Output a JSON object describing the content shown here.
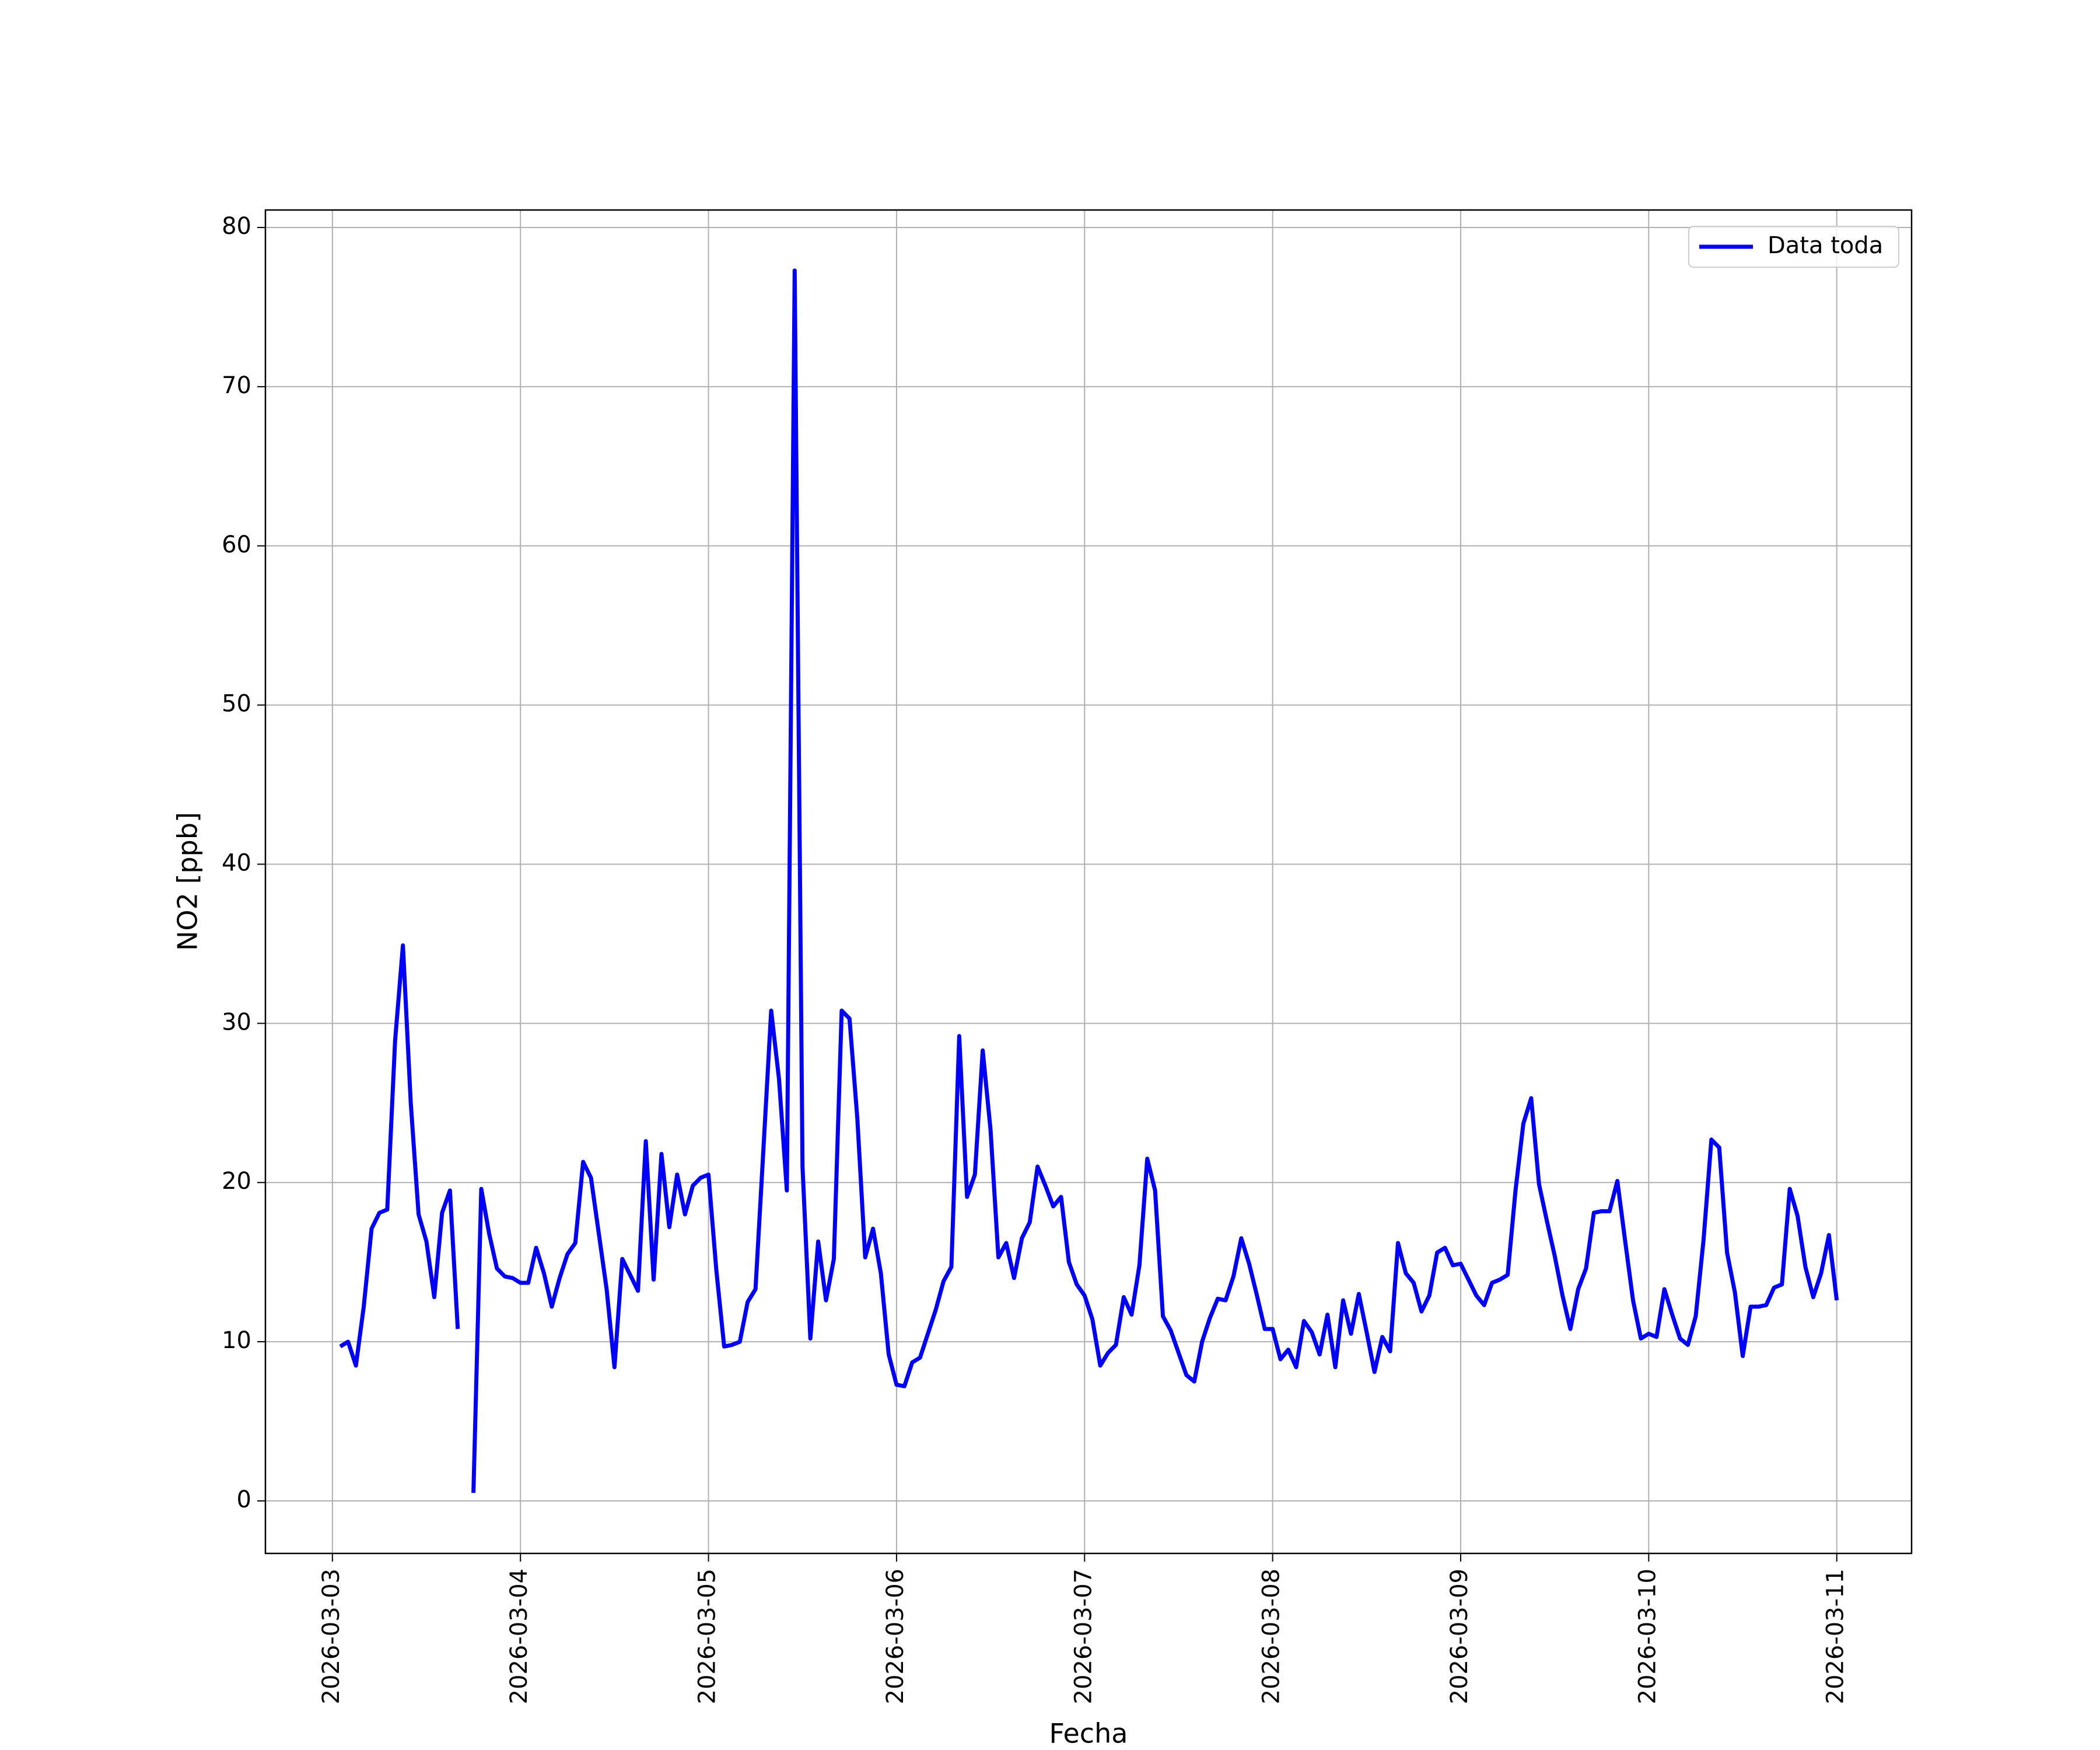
{
  "chart_data": {
    "type": "line",
    "xlabel": "Fecha",
    "ylabel": "NO2 [ppb]",
    "x": [
      "2026-03-03 01:00",
      "2026-03-03 02:00",
      "2026-03-03 03:00",
      "2026-03-03 04:00",
      "2026-03-03 05:00",
      "2026-03-03 06:00",
      "2026-03-03 07:00",
      "2026-03-03 08:00",
      "2026-03-03 09:00",
      "2026-03-03 10:00",
      "2026-03-03 11:00",
      "2026-03-03 12:00",
      "2026-03-03 13:00",
      "2026-03-03 14:00",
      "2026-03-03 15:00",
      "2026-03-03 16:00",
      "2026-03-03 17:00",
      "2026-03-03 18:00",
      "2026-03-03 19:00",
      "2026-03-03 20:00",
      "2026-03-03 21:00",
      "2026-03-03 22:00",
      "2026-03-03 23:00",
      "2026-03-04 00:00",
      "2026-03-04 01:00",
      "2026-03-04 02:00",
      "2026-03-04 03:00",
      "2026-03-04 04:00",
      "2026-03-04 05:00",
      "2026-03-04 06:00",
      "2026-03-04 07:00",
      "2026-03-04 08:00",
      "2026-03-04 09:00",
      "2026-03-04 10:00",
      "2026-03-04 11:00",
      "2026-03-04 12:00",
      "2026-03-04 13:00",
      "2026-03-04 14:00",
      "2026-03-04 15:00",
      "2026-03-04 16:00",
      "2026-03-04 17:00",
      "2026-03-04 18:00",
      "2026-03-04 19:00",
      "2026-03-04 20:00",
      "2026-03-04 21:00",
      "2026-03-04 22:00",
      "2026-03-04 23:00",
      "2026-03-05 00:00",
      "2026-03-05 01:00",
      "2026-03-05 02:00",
      "2026-03-05 03:00",
      "2026-03-05 04:00",
      "2026-03-05 05:00",
      "2026-03-05 06:00",
      "2026-03-05 07:00",
      "2026-03-05 08:00",
      "2026-03-05 09:00",
      "2026-03-05 10:00",
      "2026-03-05 11:00",
      "2026-03-05 12:00",
      "2026-03-05 13:00",
      "2026-03-05 14:00",
      "2026-03-05 15:00",
      "2026-03-05 16:00",
      "2026-03-05 17:00",
      "2026-03-05 18:00",
      "2026-03-05 19:00",
      "2026-03-05 20:00",
      "2026-03-05 21:00",
      "2026-03-05 22:00",
      "2026-03-05 23:00",
      "2026-03-06 00:00",
      "2026-03-06 01:00",
      "2026-03-06 02:00",
      "2026-03-06 03:00",
      "2026-03-06 04:00",
      "2026-03-06 05:00",
      "2026-03-06 06:00",
      "2026-03-06 07:00",
      "2026-03-06 08:00",
      "2026-03-06 09:00",
      "2026-03-06 10:00",
      "2026-03-06 11:00",
      "2026-03-06 12:00",
      "2026-03-06 13:00",
      "2026-03-06 14:00",
      "2026-03-06 15:00",
      "2026-03-06 16:00",
      "2026-03-06 17:00",
      "2026-03-06 18:00",
      "2026-03-06 19:00",
      "2026-03-06 20:00",
      "2026-03-06 21:00",
      "2026-03-06 22:00",
      "2026-03-06 23:00",
      "2026-03-07 00:00",
      "2026-03-07 01:00",
      "2026-03-07 02:00",
      "2026-03-07 03:00",
      "2026-03-07 04:00",
      "2026-03-07 05:00",
      "2026-03-07 06:00",
      "2026-03-07 07:00",
      "2026-03-07 08:00",
      "2026-03-07 09:00",
      "2026-03-07 10:00",
      "2026-03-07 11:00",
      "2026-03-07 12:00",
      "2026-03-07 13:00",
      "2026-03-07 14:00",
      "2026-03-07 15:00",
      "2026-03-07 16:00",
      "2026-03-07 17:00",
      "2026-03-07 18:00",
      "2026-03-07 19:00",
      "2026-03-07 20:00",
      "2026-03-07 21:00",
      "2026-03-07 22:00",
      "2026-03-07 23:00",
      "2026-03-08 00:00",
      "2026-03-08 01:00",
      "2026-03-08 02:00",
      "2026-03-08 03:00",
      "2026-03-08 04:00",
      "2026-03-08 05:00",
      "2026-03-08 06:00",
      "2026-03-08 07:00",
      "2026-03-08 08:00",
      "2026-03-08 09:00",
      "2026-03-08 10:00",
      "2026-03-08 11:00",
      "2026-03-08 12:00",
      "2026-03-08 13:00",
      "2026-03-08 14:00",
      "2026-03-08 15:00",
      "2026-03-08 16:00",
      "2026-03-08 17:00",
      "2026-03-08 18:00",
      "2026-03-08 19:00",
      "2026-03-08 20:00",
      "2026-03-08 21:00",
      "2026-03-08 22:00",
      "2026-03-08 23:00",
      "2026-03-09 00:00",
      "2026-03-09 01:00",
      "2026-03-09 02:00",
      "2026-03-09 03:00",
      "2026-03-09 04:00",
      "2026-03-09 05:00",
      "2026-03-09 06:00",
      "2026-03-09 07:00",
      "2026-03-09 08:00",
      "2026-03-09 09:00",
      "2026-03-09 10:00",
      "2026-03-09 11:00",
      "2026-03-09 12:00",
      "2026-03-09 13:00",
      "2026-03-09 14:00",
      "2026-03-09 15:00",
      "2026-03-09 16:00",
      "2026-03-09 17:00",
      "2026-03-09 18:00",
      "2026-03-09 19:00",
      "2026-03-09 20:00",
      "2026-03-09 21:00",
      "2026-03-09 22:00",
      "2026-03-09 23:00",
      "2026-03-10 00:00",
      "2026-03-10 01:00",
      "2026-03-10 02:00",
      "2026-03-10 03:00",
      "2026-03-10 04:00",
      "2026-03-10 05:00",
      "2026-03-10 06:00",
      "2026-03-10 07:00",
      "2026-03-10 08:00",
      "2026-03-10 09:00",
      "2026-03-10 10:00",
      "2026-03-10 11:00",
      "2026-03-10 12:00",
      "2026-03-10 13:00",
      "2026-03-10 14:00",
      "2026-03-10 15:00",
      "2026-03-10 16:00",
      "2026-03-10 17:00",
      "2026-03-10 18:00",
      "2026-03-10 19:00",
      "2026-03-10 20:00",
      "2026-03-10 21:00",
      "2026-03-10 22:00",
      "2026-03-10 23:00",
      "2026-03-11 00:00"
    ],
    "series": [
      {
        "name": "Data toda",
        "color": "#0000ff",
        "values": [
          9.7,
          10.0,
          8.5,
          12.2,
          17.1,
          18.1,
          18.3,
          28.9,
          34.9,
          25.0,
          18.0,
          16.3,
          12.8,
          18.1,
          19.5,
          10.8,
          null,
          0.5,
          19.6,
          16.8,
          14.6,
          14.1,
          14.0,
          13.7,
          13.7,
          15.9,
          14.3,
          12.2,
          14.0,
          15.5,
          16.2,
          21.3,
          20.3,
          16.8,
          13.3,
          8.4,
          15.2,
          14.2,
          13.2,
          22.6,
          13.9,
          21.8,
          17.2,
          20.5,
          18.0,
          19.8,
          20.3,
          20.5,
          14.5,
          9.7,
          9.8,
          10.0,
          12.5,
          13.3,
          22.0,
          30.8,
          26.5,
          19.5,
          77.3,
          21.0,
          10.2,
          16.3,
          12.6,
          15.2,
          30.8,
          30.3,
          24.0,
          15.3,
          17.1,
          14.3,
          9.2,
          7.3,
          7.2,
          8.7,
          9.0,
          10.5,
          12.0,
          13.8,
          14.7,
          29.2,
          19.1,
          20.5,
          28.3,
          23.3,
          15.3,
          16.2,
          14.0,
          16.5,
          17.5,
          21.0,
          19.8,
          18.5,
          19.1,
          15.0,
          13.6,
          12.9,
          11.4,
          8.5,
          9.3,
          9.8,
          12.8,
          11.7,
          14.8,
          21.5,
          19.5,
          11.6,
          10.7,
          9.3,
          7.9,
          7.5,
          10.0,
          11.5,
          12.7,
          12.6,
          14.1,
          16.5,
          14.9,
          12.9,
          10.8,
          10.8,
          8.9,
          9.5,
          8.4,
          11.3,
          10.6,
          9.2,
          11.7,
          8.4,
          12.6,
          10.5,
          13.0,
          10.6,
          8.1,
          10.3,
          9.4,
          16.2,
          14.3,
          13.7,
          11.9,
          12.9,
          15.6,
          15.9,
          14.8,
          14.9,
          13.9,
          12.9,
          12.3,
          13.7,
          13.9,
          14.2,
          19.5,
          23.7,
          25.3,
          19.9,
          17.6,
          15.4,
          12.9,
          10.8,
          13.3,
          14.6,
          18.1,
          18.2,
          18.2,
          20.1,
          16.3,
          12.6,
          10.2,
          10.5,
          10.3,
          13.3,
          11.7,
          10.2,
          9.8,
          11.6,
          16.4,
          22.7,
          22.2,
          15.6,
          13.1,
          9.1,
          12.2,
          12.2,
          12.3,
          13.4,
          13.6,
          19.6,
          17.9,
          14.7,
          12.8,
          14.3,
          16.7,
          12.6
        ]
      }
    ],
    "xlim": [
      "2026-03-02 15:27",
      "2026-03-11 09:33"
    ],
    "xticks": [
      "2026-03-03",
      "2026-03-04",
      "2026-03-05",
      "2026-03-06",
      "2026-03-07",
      "2026-03-08",
      "2026-03-09",
      "2026-03-10",
      "2026-03-11"
    ],
    "ylim": [
      -3.3,
      81.1
    ],
    "yticks": [
      0,
      10,
      20,
      30,
      40,
      50,
      60,
      70,
      80
    ],
    "grid": true,
    "legend": "upper right"
  }
}
